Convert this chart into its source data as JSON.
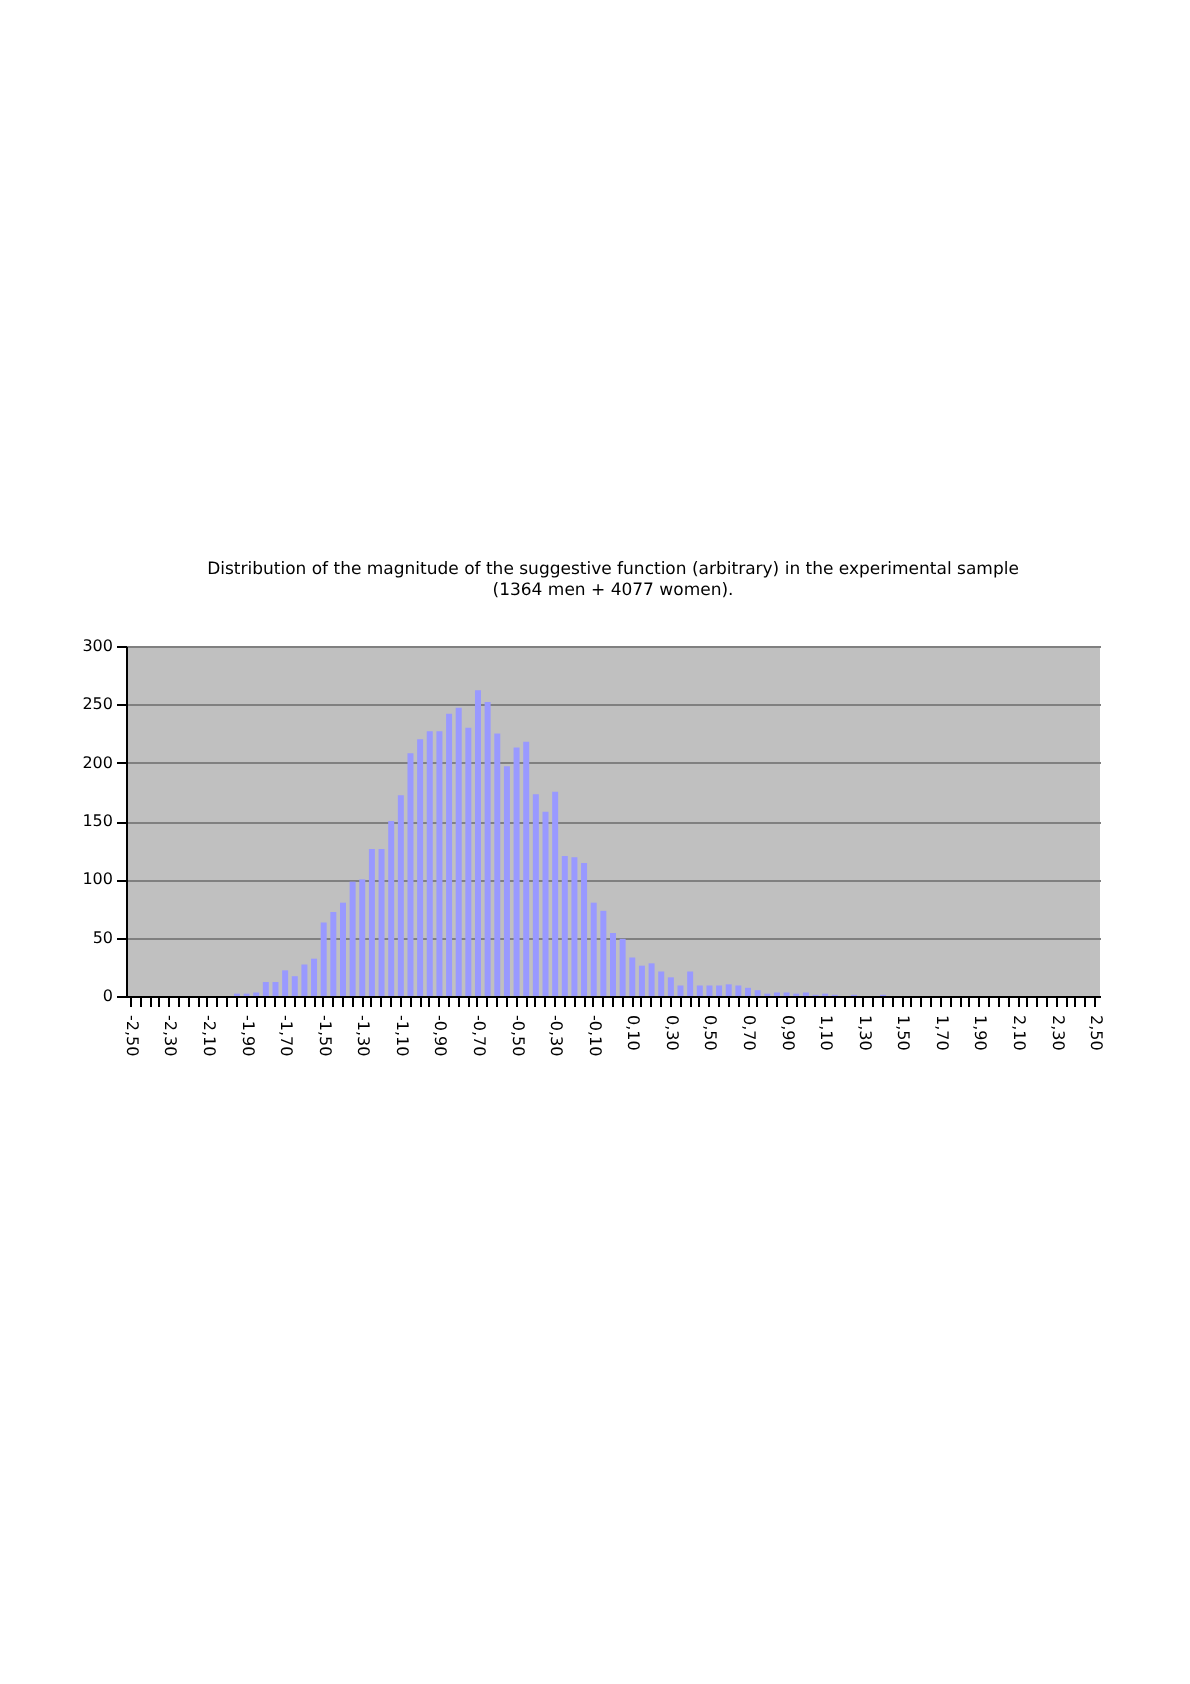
{
  "chart_data": {
    "type": "bar",
    "title": "Distribution of the magnitude of the suggestive function (arbitrary) in the experimental sample (1364 men + 4077 women).",
    "categories": [
      "-2,50",
      null,
      null,
      null,
      "-2,30",
      null,
      null,
      null,
      "-2,10",
      null,
      null,
      null,
      "-1,90",
      null,
      null,
      null,
      "-1,70",
      null,
      null,
      null,
      "-1,50",
      null,
      null,
      null,
      "-1,30",
      null,
      null,
      null,
      "-1,10",
      null,
      null,
      null,
      "-0,90",
      null,
      null,
      null,
      "-0,70",
      null,
      null,
      null,
      "-0,50",
      null,
      null,
      null,
      "-0,30",
      null,
      null,
      null,
      "-0,10",
      null,
      null,
      null,
      "0,10",
      null,
      null,
      null,
      "0,30",
      null,
      null,
      null,
      "0,50",
      null,
      null,
      null,
      "0,70",
      null,
      null,
      null,
      "0,90",
      null,
      null,
      null,
      "1,10",
      null,
      null,
      null,
      "1,30",
      null,
      null,
      null,
      "1,50",
      null,
      null,
      null,
      "1,70",
      null,
      null,
      null,
      "1,90",
      null,
      null,
      null,
      "2,10",
      null,
      null,
      null,
      "2,30",
      null,
      null,
      null,
      "2,50"
    ],
    "values": [
      0,
      0,
      0,
      0,
      0,
      0,
      0,
      0,
      0,
      0,
      0,
      2,
      2,
      3,
      12,
      12,
      22,
      17,
      27,
      32,
      63,
      72,
      80,
      98,
      100,
      126,
      126,
      150,
      172,
      208,
      220,
      227,
      227,
      242,
      247,
      230,
      262,
      252,
      225,
      197,
      213,
      218,
      173,
      158,
      175,
      120,
      119,
      114,
      80,
      73,
      54,
      49,
      33,
      26,
      28,
      21,
      16,
      9,
      21,
      9,
      9,
      9,
      10,
      9,
      7,
      5,
      2,
      3,
      3,
      2,
      3,
      1,
      2,
      1,
      0,
      1,
      0,
      0,
      1,
      0,
      0,
      0,
      0,
      0,
      0,
      0,
      0,
      0,
      0,
      0,
      0,
      0,
      0,
      0,
      0,
      0,
      0,
      0,
      0,
      0,
      0
    ],
    "color": "#9999ff",
    "ylim": [
      0,
      300
    ],
    "yticks": [
      0,
      50,
      100,
      150,
      200,
      250,
      300
    ],
    "grid": "y"
  }
}
